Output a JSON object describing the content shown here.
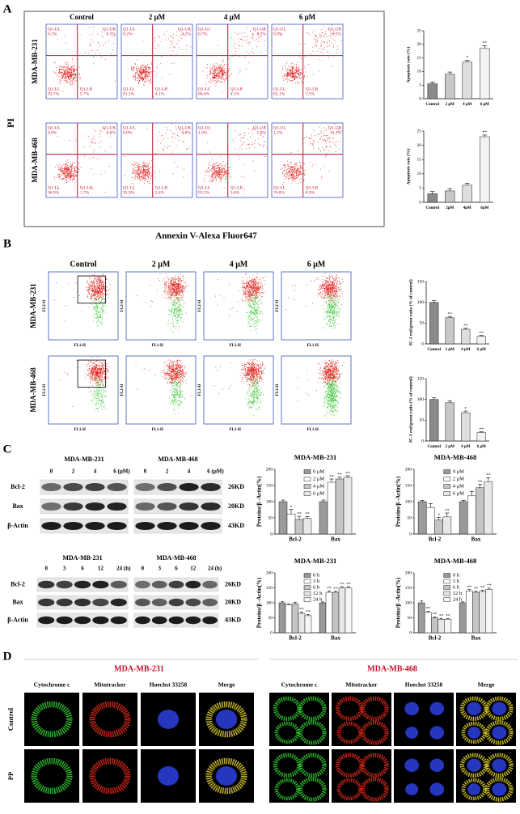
{
  "chart_data": [
    {
      "type": "bar",
      "ylabel": "Apoptosis rate (%)",
      "categories": [
        "Control",
        "2 μM",
        "4 μM",
        "6 μM"
      ],
      "values": [
        5.5,
        9,
        13.5,
        18.5
      ],
      "errors": [
        0.6,
        0.8,
        0.7,
        1.0
      ],
      "annotations": [
        null,
        null,
        "*",
        "**"
      ],
      "colors": [
        "#8a8a8a",
        "#c8c8c8",
        "#dedede",
        "#f2f2f2"
      ],
      "ylim": [
        0,
        25
      ],
      "yticks": [
        0,
        5,
        10,
        15,
        20,
        25
      ]
    },
    {
      "type": "bar",
      "ylabel": "Apoptosis rate (%)",
      "categories": [
        "Control",
        "2μM",
        "4μM",
        "6μM"
      ],
      "values": [
        3,
        4,
        6,
        23
      ],
      "errors": [
        0.8,
        0.8,
        0.7,
        0.6
      ],
      "annotations": [
        null,
        null,
        null,
        "**"
      ],
      "colors": [
        "#8a8a8a",
        "#c8c8c8",
        "#dedede",
        "#f2f2f2"
      ],
      "ylim": [
        0,
        25
      ],
      "yticks": [
        0,
        5,
        10,
        15,
        20,
        25
      ]
    },
    {
      "type": "bar",
      "ylabel": "JC-1 red/green ratio (% of control)",
      "categories": [
        "Control",
        "2 μM",
        "4 μM",
        "6 μM"
      ],
      "values": [
        100,
        63,
        35,
        18
      ],
      "errors": [
        4,
        3,
        3,
        2
      ],
      "annotations": [
        null,
        "**",
        "**",
        "**"
      ],
      "colors": [
        "#8a8a8a",
        "#c8c8c8",
        "#dedede",
        "#f2f2f2"
      ],
      "ylim": [
        0,
        150
      ],
      "yticks": [
        0,
        50,
        100,
        150
      ]
    },
    {
      "type": "bar",
      "ylabel": "JC-1 red/green ratio (% of control)",
      "categories": [
        "Control",
        "2 μM",
        "4 μM",
        "6 μM"
      ],
      "values": [
        100,
        92,
        68,
        20
      ],
      "errors": [
        4,
        5,
        4,
        2
      ],
      "annotations": [
        null,
        null,
        "*",
        "**"
      ],
      "colors": [
        "#8a8a8a",
        "#c8c8c8",
        "#dedede",
        "#f2f2f2"
      ],
      "ylim": [
        0,
        150
      ],
      "yticks": [
        0,
        50,
        100,
        150
      ]
    },
    {
      "type": "bar",
      "title": "MDA-MB-231",
      "ylabel": "Proteins/β -Actin(%)",
      "categories": [
        "Bcl-2",
        "Bax"
      ],
      "ylim": [
        0,
        200
      ],
      "yticks": [
        0,
        50,
        100,
        150,
        200
      ],
      "series": [
        {
          "name": "0 μM",
          "color": "#9a9a9a",
          "values": [
            100,
            100
          ],
          "errors": [
            5,
            5
          ],
          "annotations": [
            null,
            null
          ]
        },
        {
          "name": "2 μM",
          "color": "#ffffff",
          "values": [
            62,
            160
          ],
          "errors": [
            14,
            10
          ],
          "annotations": [
            "*",
            "**"
          ]
        },
        {
          "name": "4 μM",
          "color": "#c4c4c4",
          "values": [
            45,
            170
          ],
          "errors": [
            10,
            6
          ],
          "annotations": [
            "**",
            "**"
          ]
        },
        {
          "name": "6 μM",
          "color": "#e8e8e8",
          "values": [
            48,
            175
          ],
          "errors": [
            6,
            5
          ],
          "annotations": [
            "**",
            "**"
          ]
        }
      ]
    },
    {
      "type": "bar",
      "title": "MDA-MB-468",
      "ylabel": "Proteins/β -Actin(%)",
      "categories": [
        "Bcl-2",
        "Bax"
      ],
      "ylim": [
        0,
        200
      ],
      "yticks": [
        0,
        50,
        100,
        150,
        200
      ],
      "series": [
        {
          "name": "0 μM",
          "color": "#9a9a9a",
          "values": [
            100,
            100
          ],
          "errors": [
            4,
            4
          ],
          "annotations": [
            null,
            null
          ]
        },
        {
          "name": "2 μM",
          "color": "#ffffff",
          "values": [
            82,
            118
          ],
          "errors": [
            12,
            14
          ],
          "annotations": [
            null,
            null
          ]
        },
        {
          "name": "4 μM",
          "color": "#c4c4c4",
          "values": [
            43,
            143
          ],
          "errors": [
            8,
            10
          ],
          "annotations": [
            "*",
            "**"
          ]
        },
        {
          "name": "6 μM",
          "color": "#e8e8e8",
          "values": [
            53,
            162
          ],
          "errors": [
            12,
            12
          ],
          "annotations": [
            "**",
            "**"
          ]
        }
      ]
    },
    {
      "type": "bar",
      "title": "MDA-MB-231",
      "ylabel": "Proteins/β -Actin(%)",
      "categories": [
        "Bcl-2",
        "Bax"
      ],
      "ylim": [
        0,
        200
      ],
      "yticks": [
        0,
        50,
        100,
        150,
        200
      ],
      "series": [
        {
          "name": "0 h",
          "color": "#9a9a9a",
          "values": [
            100,
            100
          ],
          "errors": [
            4,
            3
          ],
          "annotations": [
            null,
            null
          ]
        },
        {
          "name": "3 h",
          "color": "#ffffff",
          "values": [
            93,
            135
          ],
          "errors": [
            4,
            5
          ],
          "annotations": [
            null,
            "**"
          ]
        },
        {
          "name": "6 h",
          "color": "#c4c4c4",
          "values": [
            97,
            135
          ],
          "errors": [
            5,
            4
          ],
          "annotations": [
            null,
            "**"
          ]
        },
        {
          "name": "12 h",
          "color": "#e8e8e8",
          "values": [
            65,
            150
          ],
          "errors": [
            4,
            4
          ],
          "annotations": [
            "**",
            "**"
          ]
        },
        {
          "name": "24 h",
          "color": "#f6f6f6",
          "values": [
            57,
            150
          ],
          "errors": [
            4,
            4
          ],
          "annotations": [
            "**",
            "**"
          ]
        }
      ]
    },
    {
      "type": "bar",
      "title": "MDA-MB-468",
      "ylabel": "Proteins/β -Actin(%)",
      "categories": [
        "Bcl-2",
        "Bax"
      ],
      "ylim": [
        0,
        200
      ],
      "yticks": [
        0,
        50,
        100,
        150,
        200
      ],
      "series": [
        {
          "name": "0 h",
          "color": "#9a9a9a",
          "values": [
            100,
            100
          ],
          "errors": [
            6,
            3
          ],
          "annotations": [
            null,
            null
          ]
        },
        {
          "name": "3 h",
          "color": "#ffffff",
          "values": [
            68,
            140
          ],
          "errors": [
            4,
            4
          ],
          "annotations": [
            "**",
            "**"
          ]
        },
        {
          "name": "6 h",
          "color": "#c4c4c4",
          "values": [
            50,
            135
          ],
          "errors": [
            3,
            4
          ],
          "annotations": [
            "**",
            "**"
          ]
        },
        {
          "name": "12 h",
          "color": "#e8e8e8",
          "values": [
            45,
            138
          ],
          "errors": [
            3,
            4
          ],
          "annotations": [
            "**",
            "**"
          ]
        },
        {
          "name": "24 h",
          "color": "#f6f6f6",
          "values": [
            45,
            145
          ],
          "errors": [
            3,
            4
          ],
          "annotations": [
            "**",
            "**"
          ]
        }
      ]
    }
  ],
  "figure": {
    "A": {
      "label": "A",
      "columns": [
        "Control",
        "2 μM",
        "4 μM",
        "6 μM"
      ],
      "rows": [
        "MDA-MB-231",
        "MDA-MB-468"
      ],
      "y_title": "PI",
      "x_title": "Annexin V-Alexa Fluor647",
      "quadrants": [
        "Q1-UL",
        "Q1-UR",
        "Q1-LL",
        "Q1-LR"
      ],
      "percentages": [
        [
          [
            "0.1%",
            "0.5%",
            "93.7%",
            "5.7%"
          ],
          [
            "0.2%",
            "4.2%",
            "91.5%",
            "4.1%"
          ],
          [
            "0.7%",
            "8.2%",
            "86.6%",
            "4.5%"
          ],
          [
            "0.9%",
            "13.5%",
            "82.1%",
            "3.5%"
          ]
        ],
        [
          [
            "0.8%",
            "0.6%",
            "96.9%",
            "1.7%"
          ],
          [
            "0.8%",
            "0.8%",
            "95.9%",
            "2.4%"
          ],
          [
            "1.0%",
            "1.9%",
            "93.5%",
            "3.6%"
          ],
          [
            "1.2%",
            "13.2%",
            "76.8%",
            "8.9%"
          ]
        ]
      ]
    },
    "B": {
      "label": "B",
      "columns": [
        "Control",
        "2 μM",
        "4 μM",
        "6 μM"
      ],
      "rows": [
        "MDA-MB-231",
        "MDA-MB-468"
      ],
      "x_axis": "FL1-H",
      "y_axis": "FL2-H"
    },
    "C": {
      "label": "C",
      "cells": [
        "MDA-MB-231",
        "MDA-MB-468"
      ],
      "proteins": [
        "Bcl-2",
        "Bax",
        "β-Actin"
      ],
      "sizes": [
        "26KD",
        "20KD",
        "43KD"
      ],
      "dose_lanes": [
        "0",
        "2",
        "4",
        "6 (μM)"
      ],
      "time_lanes": [
        "0",
        "3",
        "6",
        "12",
        "24 (h)"
      ]
    },
    "D": {
      "label": "D",
      "cells": [
        "MDA-MB-231",
        "MDA-MB-468"
      ],
      "stains": [
        "Cytochrome c",
        "Mitotracker",
        "Hoechst 33258",
        "Merge"
      ],
      "conditions": [
        "Control",
        "PP"
      ]
    }
  }
}
